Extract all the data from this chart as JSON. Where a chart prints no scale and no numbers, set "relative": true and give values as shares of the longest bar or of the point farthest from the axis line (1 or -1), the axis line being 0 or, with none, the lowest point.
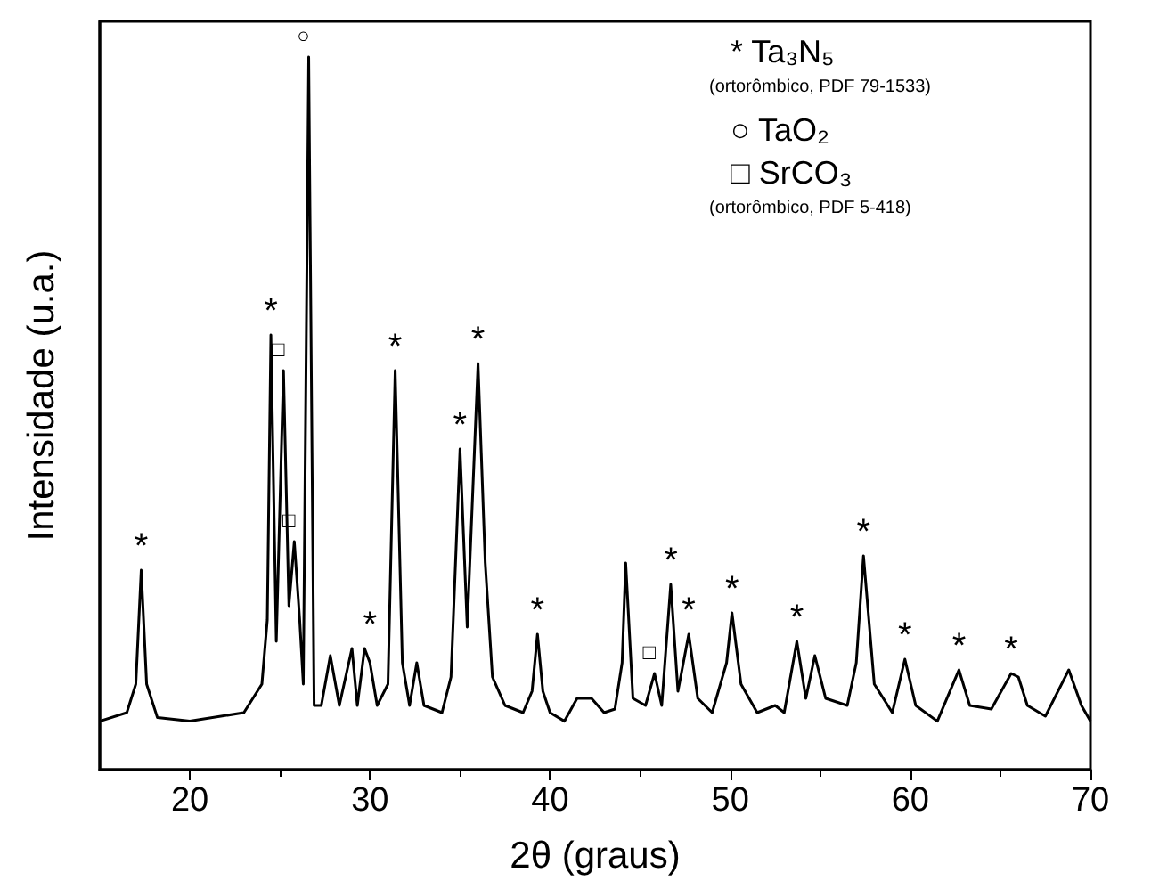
{
  "chart_data": {
    "type": "line",
    "relative": true,
    "xlabel": "2θ (graus)",
    "ylabel": "Intensidade (u.a.)",
    "xlim": [
      15,
      70
    ],
    "xticks": [
      20,
      30,
      40,
      50,
      60,
      70
    ],
    "grid": false,
    "marker": "none",
    "line_style": "solid",
    "series": [
      {
        "color": "#000000",
        "x": [
          15,
          16.5,
          17.0,
          17.3,
          17.6,
          18.2,
          20,
          23,
          24.0,
          24.3,
          24.5,
          24.8,
          25.2,
          25.5,
          25.8,
          26.1,
          26.3,
          26.6,
          26.9,
          27.3,
          27.8,
          28.3,
          29.0,
          29.3,
          29.7,
          30.0,
          30.4,
          31.0,
          31.4,
          31.8,
          32.2,
          32.6,
          33.0,
          34.0,
          34.5,
          35.0,
          35.4,
          36.0,
          36.4,
          36.8,
          37.5,
          38.5,
          39.0,
          39.3,
          39.6,
          40.0,
          40.8,
          41.5,
          42.3,
          43.0,
          43.6,
          44.0,
          44.2,
          44.6,
          45.3,
          45.8,
          46.2,
          46.7,
          47.1,
          47.7,
          48.2,
          49.0,
          49.8,
          50.1,
          50.6,
          51.5,
          52.5,
          53.0,
          53.7,
          54.2,
          54.7,
          55.3,
          56.5,
          57.0,
          57.4,
          58.0,
          59.0,
          59.7,
          60.3,
          61.5,
          62.7,
          63.3,
          64.5,
          65.6,
          66.0,
          66.5,
          67.5,
          68.8,
          69.5,
          70
        ],
        "values": [
          0.068,
          0.08,
          0.12,
          0.28,
          0.12,
          0.073,
          0.068,
          0.08,
          0.12,
          0.21,
          0.61,
          0.18,
          0.56,
          0.23,
          0.32,
          0.21,
          0.12,
          1.0,
          0.09,
          0.09,
          0.16,
          0.09,
          0.17,
          0.09,
          0.17,
          0.15,
          0.09,
          0.12,
          0.56,
          0.15,
          0.09,
          0.15,
          0.09,
          0.08,
          0.13,
          0.45,
          0.2,
          0.57,
          0.29,
          0.13,
          0.09,
          0.08,
          0.11,
          0.19,
          0.11,
          0.08,
          0.068,
          0.1,
          0.1,
          0.08,
          0.085,
          0.15,
          0.29,
          0.1,
          0.09,
          0.135,
          0.09,
          0.26,
          0.11,
          0.19,
          0.1,
          0.08,
          0.15,
          0.22,
          0.12,
          0.08,
          0.09,
          0.08,
          0.18,
          0.1,
          0.16,
          0.1,
          0.09,
          0.15,
          0.3,
          0.12,
          0.08,
          0.155,
          0.09,
          0.068,
          0.14,
          0.09,
          0.085,
          0.135,
          0.13,
          0.09,
          0.075,
          0.14,
          0.09,
          0.068
        ]
      }
    ],
    "annotations": [
      {
        "text": "*",
        "x": 17.3,
        "y": 0.28
      },
      {
        "text": "*",
        "x": 24.5,
        "y": 0.61
      },
      {
        "text": "□",
        "x": 25.2,
        "y": 0.56
      },
      {
        "text": "□",
        "x": 25.8,
        "y": 0.32
      },
      {
        "text": "○",
        "x": 26.6,
        "y": 1.0
      },
      {
        "text": "*",
        "x": 30.0,
        "y": 0.17
      },
      {
        "text": "*",
        "x": 31.4,
        "y": 0.56
      },
      {
        "text": "*",
        "x": 35.0,
        "y": 0.45
      },
      {
        "text": "*",
        "x": 36.0,
        "y": 0.57
      },
      {
        "text": "*",
        "x": 39.3,
        "y": 0.19
      },
      {
        "text": "□",
        "x": 45.8,
        "y": 0.135
      },
      {
        "text": "*",
        "x": 46.7,
        "y": 0.26
      },
      {
        "text": "*",
        "x": 47.7,
        "y": 0.19
      },
      {
        "text": "*",
        "x": 50.1,
        "y": 0.22
      },
      {
        "text": "*",
        "x": 53.7,
        "y": 0.18
      },
      {
        "text": "*",
        "x": 57.4,
        "y": 0.3
      },
      {
        "text": "*",
        "x": 59.7,
        "y": 0.155
      },
      {
        "text": "*",
        "x": 62.7,
        "y": 0.14
      },
      {
        "text": "*",
        "x": 65.6,
        "y": 0.135
      },
      "* Ta₃N₅",
      "(ortorômbico, PDF 79-1533)",
      "○ TaO₂",
      "□ SrCO₃",
      "(ortorômbico, PDF 5-418)"
    ]
  }
}
